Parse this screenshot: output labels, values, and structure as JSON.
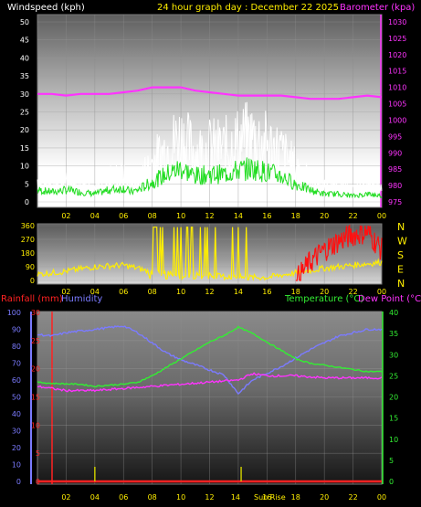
{
  "header": {
    "wind_label": "Windspeed (kph)",
    "title": "24 hour graph day : December 22 2025",
    "baro_label": "Barometer (kpa)"
  },
  "colors": {
    "wind_gust": "#ffffff",
    "wind_avg": "#22dd22",
    "barometer": "#ff33ff",
    "direction_low": "#ffee00",
    "direction_high": "#ff1111",
    "rainfall": "#ff2222",
    "humidity": "#7b7bff",
    "temperature": "#33ee33",
    "dewpoint": "#ff33ff",
    "bar_marker": "#c8c800"
  },
  "x_ticks": [
    "02",
    "04",
    "06",
    "08",
    "10",
    "12",
    "14",
    "16",
    "18",
    "20",
    "22",
    "00"
  ],
  "panels": {
    "wind": {
      "y_ticks": [
        "50",
        "45",
        "40",
        "35",
        "30",
        "25",
        "20",
        "15",
        "10",
        "5",
        "0"
      ],
      "baro_ticks": [
        "1030",
        "1025",
        "1020",
        "1015",
        "1010",
        "1005",
        "1000",
        "995",
        "990",
        "985",
        "980",
        "975"
      ]
    },
    "direction": {
      "y_ticks": [
        "360",
        "270",
        "180",
        "90",
        "0"
      ],
      "compass": [
        "N",
        "W",
        "S",
        "E",
        "N"
      ]
    },
    "climate": {
      "rain_label": "Rainfall (mm)",
      "humidity_label": "Humidity",
      "temp_label": "Temperature (°C)",
      "dew_label": "Dew Point (°C)",
      "humidity_ticks": [
        "100",
        "90",
        "80",
        "70",
        "60",
        "50",
        "40",
        "30",
        "20",
        "10",
        "0"
      ],
      "rain_ticks": [
        "30",
        "25",
        "20",
        "15",
        "10",
        "5",
        "0"
      ],
      "temp_ticks": [
        "40",
        "35",
        "30",
        "25",
        "20",
        "15",
        "10",
        "5",
        "0"
      ],
      "sunrise_label": "Sun Rise"
    }
  },
  "chart_data": [
    {
      "type": "line",
      "x_unit": "hour",
      "ylim": [
        0,
        50
      ],
      "y2lim": [
        975,
        1030
      ],
      "series": [
        {
          "name": "Windspeed (kph)",
          "points": [
            [
              0,
              6
            ],
            [
              1,
              5
            ],
            [
              2,
              6
            ],
            [
              3,
              5
            ],
            [
              4,
              4
            ],
            [
              5,
              6
            ],
            [
              6,
              7
            ],
            [
              6.5,
              5
            ],
            [
              7,
              6
            ],
            [
              8,
              10
            ],
            [
              9,
              14
            ],
            [
              10,
              17
            ],
            [
              11,
              13
            ],
            [
              12,
              14
            ],
            [
              13,
              14
            ],
            [
              14,
              16
            ],
            [
              15,
              17
            ],
            [
              16,
              15
            ],
            [
              17,
              13
            ],
            [
              18,
              9
            ],
            [
              19,
              6
            ],
            [
              20,
              4
            ],
            [
              21,
              4
            ],
            [
              22,
              3
            ],
            [
              23,
              4
            ],
            [
              24,
              3
            ]
          ]
        },
        {
          "name": "Barometer (kpa)",
          "points": [
            [
              0,
              1008
            ],
            [
              1,
              1008
            ],
            [
              2,
              1007.5
            ],
            [
              3,
              1008
            ],
            [
              4,
              1008
            ],
            [
              5,
              1008
            ],
            [
              6,
              1008.5
            ],
            [
              7,
              1009
            ],
            [
              8,
              1010
            ],
            [
              9,
              1010
            ],
            [
              10,
              1010
            ],
            [
              11,
              1009
            ],
            [
              12,
              1008.5
            ],
            [
              13,
              1008
            ],
            [
              14,
              1007.5
            ],
            [
              15,
              1007.5
            ],
            [
              16,
              1007.5
            ],
            [
              17,
              1007.5
            ],
            [
              18,
              1007
            ],
            [
              19,
              1006.5
            ],
            [
              20,
              1006.5
            ],
            [
              21,
              1006.5
            ],
            [
              22,
              1007
            ],
            [
              23,
              1007.5
            ],
            [
              24,
              1007
            ]
          ]
        }
      ]
    },
    {
      "type": "line",
      "x_unit": "hour",
      "ylim": [
        0,
        360
      ],
      "series": [
        {
          "points": [
            [
              0,
              40
            ],
            [
              2,
              60
            ],
            [
              4,
              90
            ],
            [
              6,
              100
            ],
            [
              7,
              80
            ],
            [
              8,
              50
            ],
            [
              10,
              40
            ],
            [
              12,
              30
            ],
            [
              14,
              20
            ],
            [
              16,
              20
            ],
            [
              18,
              50
            ],
            [
              20,
              80
            ],
            [
              22,
              100
            ],
            [
              24,
              120
            ]
          ]
        },
        {
          "points": [
            [
              18,
              0
            ],
            [
              18.5,
              60
            ],
            [
              19,
              120
            ],
            [
              20,
              200
            ],
            [
              21,
              260
            ],
            [
              22,
              300
            ],
            [
              23,
              320
            ],
            [
              24,
              200
            ]
          ]
        }
      ]
    },
    {
      "type": "line",
      "x_unit": "hour",
      "ylim": [
        0,
        100
      ],
      "y2lim": [
        0,
        40
      ],
      "series": [
        {
          "name": "Humidity",
          "points": [
            [
              0,
              87
            ],
            [
              1,
              86
            ],
            [
              2,
              88
            ],
            [
              3,
              89
            ],
            [
              4,
              90
            ],
            [
              5,
              91
            ],
            [
              6,
              92
            ],
            [
              7,
              88
            ],
            [
              8,
              82
            ],
            [
              9,
              76
            ],
            [
              10,
              72
            ],
            [
              11,
              69
            ],
            [
              12,
              66
            ],
            [
              13,
              63
            ],
            [
              14,
              52
            ],
            [
              15,
              60
            ],
            [
              16,
              64
            ],
            [
              17,
              68
            ],
            [
              18,
              73
            ],
            [
              19,
              78
            ],
            [
              20,
              82
            ],
            [
              21,
              86
            ],
            [
              22,
              88
            ],
            [
              23,
              90
            ],
            [
              24,
              90
            ]
          ]
        },
        {
          "name": "Temperature (°C)",
          "points": [
            [
              0,
              23.5
            ],
            [
              1,
              23.2
            ],
            [
              2,
              23.1
            ],
            [
              3,
              23
            ],
            [
              4,
              22.5
            ],
            [
              5,
              22.8
            ],
            [
              6,
              23
            ],
            [
              7,
              23.5
            ],
            [
              8,
              25
            ],
            [
              9,
              27
            ],
            [
              10,
              29
            ],
            [
              11,
              31
            ],
            [
              12,
              33
            ],
            [
              13,
              34.5
            ],
            [
              14,
              36.5
            ],
            [
              15,
              35
            ],
            [
              16,
              33
            ],
            [
              17,
              31
            ],
            [
              18,
              29
            ],
            [
              19,
              28
            ],
            [
              20,
              27.5
            ],
            [
              21,
              27
            ],
            [
              22,
              26.5
            ],
            [
              23,
              26
            ],
            [
              24,
              26
            ]
          ]
        },
        {
          "name": "Dew Point (°C)",
          "points": [
            [
              0,
              22.5
            ],
            [
              2,
              21.5
            ],
            [
              4,
              21.5
            ],
            [
              6,
              22
            ],
            [
              8,
              22.5
            ],
            [
              10,
              23
            ],
            [
              12,
              23.5
            ],
            [
              14,
              24
            ],
            [
              15,
              25.5
            ],
            [
              16,
              25
            ],
            [
              18,
              25
            ],
            [
              20,
              24.5
            ],
            [
              22,
              24.5
            ],
            [
              24,
              24.5
            ]
          ]
        },
        {
          "name": "Rainfall (mm)",
          "points": [
            [
              0,
              0
            ],
            [
              24,
              0
            ]
          ]
        }
      ]
    }
  ]
}
